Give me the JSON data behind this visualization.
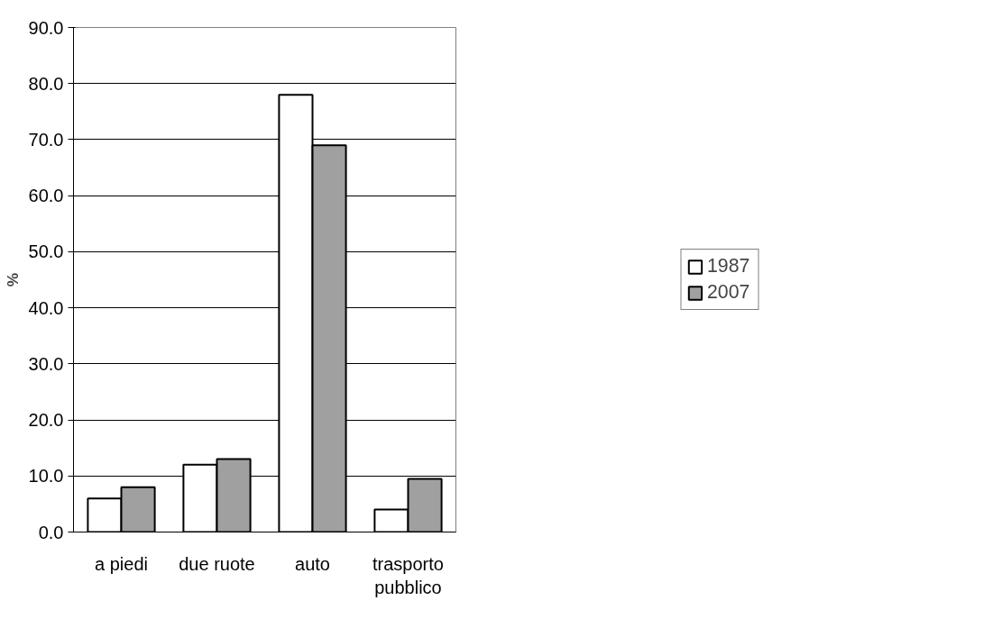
{
  "chart_data": {
    "type": "bar",
    "ylabel": "%",
    "categories": [
      "a piedi",
      "due ruote",
      "auto",
      "trasporto pubblico"
    ],
    "series": [
      {
        "name": "1987",
        "color": "#ffffff",
        "values": [
          6.0,
          12.0,
          78.0,
          4.0
        ]
      },
      {
        "name": "2007",
        "color": "#a0a0a0",
        "values": [
          8.0,
          13.0,
          69.0,
          9.5
        ]
      }
    ],
    "ylim": [
      0,
      90
    ],
    "yticks": [
      {
        "value": 0,
        "label": "0.0"
      },
      {
        "value": 10,
        "label": "10.0"
      },
      {
        "value": 20,
        "label": "20.0"
      },
      {
        "value": 30,
        "label": "30.0"
      },
      {
        "value": 40,
        "label": "40.0"
      },
      {
        "value": 50,
        "label": "50.0"
      },
      {
        "value": 60,
        "label": "60.0"
      },
      {
        "value": 70,
        "label": "70.0"
      },
      {
        "value": 80,
        "label": "80.0"
      },
      {
        "value": 90,
        "label": "90.0"
      }
    ],
    "grid": "y",
    "legend": "right"
  }
}
